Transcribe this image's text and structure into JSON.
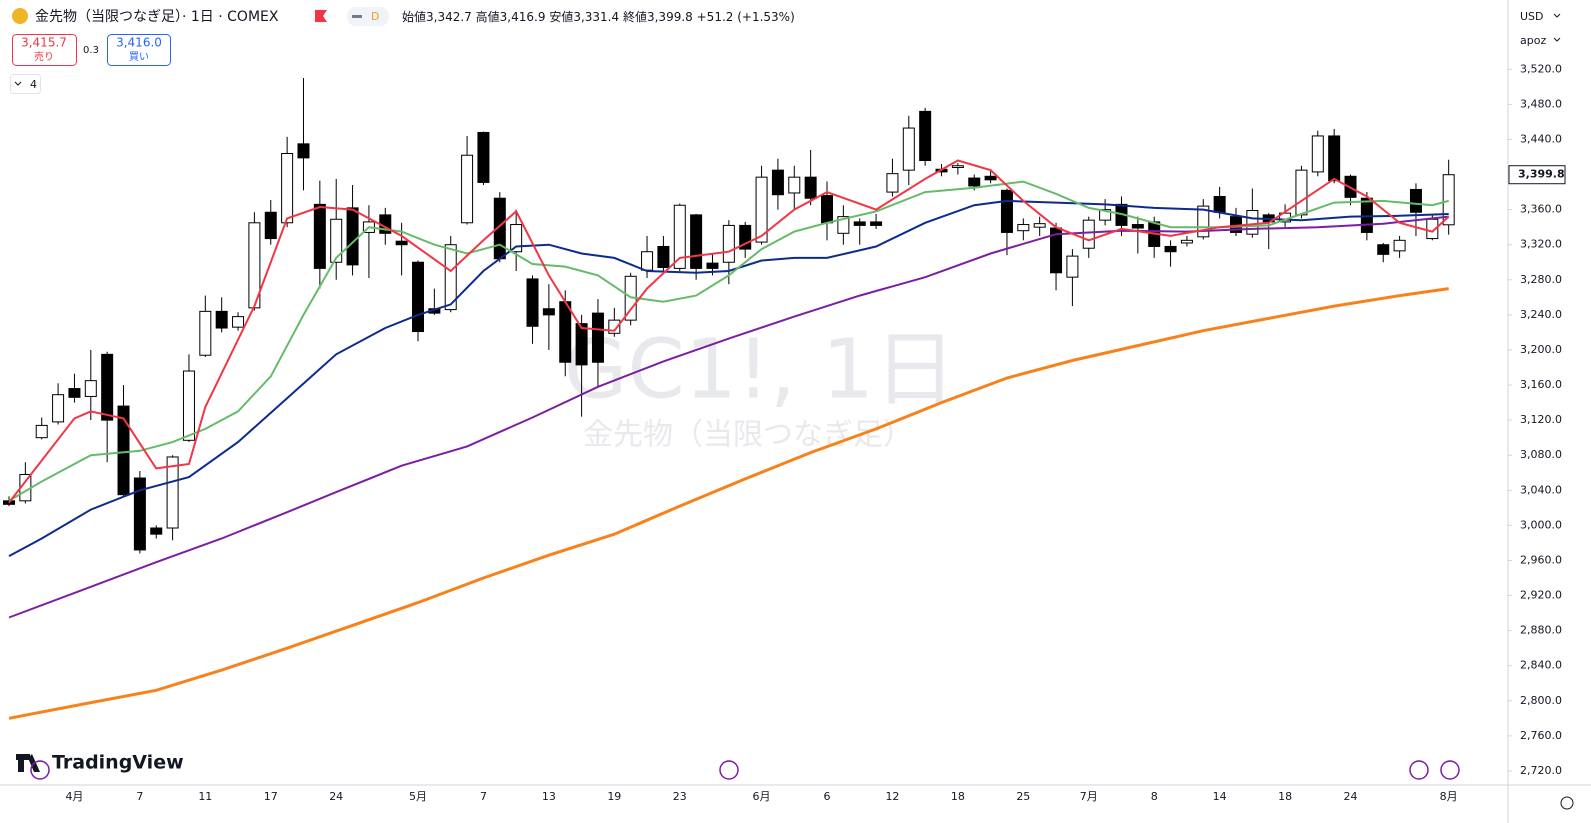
{
  "header": {
    "symbol_title": "金先物（当限つなぎ足）· 1日 · COMEX",
    "interval_badge": "D",
    "ohlc": [
      {
        "label": "始値",
        "value": "3,342.7"
      },
      {
        "label": "高値",
        "value": "3,416.9"
      },
      {
        "label": "安値",
        "value": "3,331.4"
      },
      {
        "label": "終値",
        "value": "3,399.8"
      }
    ],
    "change": "+51.2 (+1.53%)"
  },
  "trade": {
    "sell_price": "3,415.7",
    "sell_label": "売り",
    "spread": "0.3",
    "buy_price": "3,416.0",
    "buy_label": "買い"
  },
  "indicators_count": "4",
  "watermark": {
    "line1": "GC1!, 1日",
    "line2": "金先物（当限つなぎ足）"
  },
  "brand": "TradingView",
  "currency": "USD",
  "scale_mode": "apoz",
  "chart_data": {
    "type": "candlestick",
    "categories": [
      null,
      null,
      null,
      null,
      "4月",
      null,
      null,
      null,
      "7",
      null,
      null,
      null,
      "11",
      null,
      null,
      null,
      "17",
      null,
      null,
      null,
      "24",
      null,
      null,
      null,
      null,
      "5月",
      null,
      null,
      null,
      "7",
      null,
      null,
      null,
      "13",
      null,
      null,
      null,
      "19",
      null,
      null,
      null,
      "23",
      null,
      null,
      null,
      null,
      "6月",
      null,
      null,
      null,
      "6",
      null,
      null,
      null,
      "12",
      null,
      null,
      null,
      "18",
      null,
      null,
      null,
      "25",
      null,
      null,
      null,
      "7月",
      null,
      null,
      null,
      "8",
      null,
      null,
      null,
      "14",
      null,
      null,
      null,
      "18",
      null,
      null,
      null,
      "24",
      null,
      null,
      null,
      null,
      null,
      "8月"
    ],
    "open": [
      3028,
      3028,
      3100,
      3118,
      3156,
      3147,
      3195,
      3136,
      3054,
      2997,
      2997,
      3097,
      3194,
      3244,
      3226,
      3248,
      3357,
      3345,
      3435,
      3366,
      3300,
      3362,
      3334,
      3354,
      3324,
      3300,
      3247,
      3246,
      3345,
      3448,
      3373,
      3312,
      3281,
      3247,
      3255,
      3230,
      3242,
      3219,
      3234,
      3291,
      3318,
      3293,
      3354,
      3299,
      3300,
      3342,
      3323,
      3405,
      3379,
      3397,
      3376,
      3333,
      3346,
      3346,
      3380,
      3405,
      3472,
      3406,
      3408,
      3396,
      3398,
      3382,
      3336,
      3340,
      3339,
      3283,
      3316,
      3348,
      3366,
      3343,
      3346,
      3318,
      3322,
      3329,
      3375,
      3352,
      3332,
      3354,
      3346,
      3354,
      3403,
      3444,
      3398,
      3373,
      3320,
      3313,
      3383,
      3327,
      3342.7
    ],
    "high": [
      3033,
      3072,
      3123,
      3162,
      3173,
      3200,
      3198,
      3160,
      3062,
      3000,
      3080,
      3195,
      3262,
      3260,
      3243,
      3357,
      3371,
      3443,
      3510,
      3393,
      3395,
      3388,
      3365,
      3362,
      3345,
      3302,
      3270,
      3330,
      3444,
      3449,
      3380,
      3360,
      3285,
      3275,
      3268,
      3240,
      3258,
      3248,
      3288,
      3330,
      3330,
      3367,
      3355,
      3310,
      3348,
      3346,
      3410,
      3418,
      3410,
      3428,
      3392,
      3365,
      3350,
      3355,
      3418,
      3467,
      3476,
      3412,
      3413,
      3400,
      3405,
      3384,
      3350,
      3352,
      3345,
      3315,
      3352,
      3372,
      3375,
      3352,
      3352,
      3325,
      3330,
      3372,
      3386,
      3362,
      3384,
      3356,
      3366,
      3410,
      3450,
      3452,
      3400,
      3380,
      3322,
      3330,
      3390,
      3355,
      3416.9
    ],
    "low": [
      3022,
      3025,
      3098,
      3115,
      3140,
      3120,
      3072,
      3032,
      2968,
      2985,
      2983,
      3095,
      3192,
      3220,
      3222,
      3245,
      3320,
      3340,
      3382,
      3270,
      3280,
      3285,
      3282,
      3320,
      3285,
      3210,
      3240,
      3243,
      3343,
      3388,
      3300,
      3290,
      3207,
      3200,
      3170,
      3124,
      3157,
      3215,
      3228,
      3282,
      3290,
      3290,
      3280,
      3285,
      3275,
      3305,
      3320,
      3360,
      3360,
      3365,
      3325,
      3320,
      3320,
      3338,
      3375,
      3388,
      3410,
      3398,
      3400,
      3382,
      3390,
      3308,
      3325,
      3330,
      3268,
      3250,
      3305,
      3342,
      3330,
      3310,
      3305,
      3295,
      3318,
      3326,
      3350,
      3330,
      3328,
      3315,
      3340,
      3350,
      3398,
      3390,
      3365,
      3325,
      3300,
      3305,
      3330,
      3325,
      3331.4
    ],
    "close": [
      3024,
      3058,
      3114,
      3149,
      3146,
      3165,
      3120,
      3035,
      2972,
      2990,
      3078,
      3176,
      3244,
      3225,
      3238,
      3345,
      3327,
      3424,
      3419,
      3293,
      3349,
      3297,
      3346,
      3333,
      3320,
      3221,
      3242,
      3320,
      3422,
      3391,
      3304,
      3343,
      3227,
      3240,
      3186,
      3183,
      3186,
      3234,
      3284,
      3312,
      3294,
      3365,
      3293,
      3293,
      3342,
      3315,
      3397,
      3377,
      3397,
      3373,
      3345,
      3352,
      3342,
      3342,
      3401,
      3453,
      3416,
      3403,
      3410,
      3387,
      3394,
      3334,
      3343,
      3344,
      3288,
      3307,
      3348,
      3360,
      3342,
      3339,
      3318,
      3312,
      3325,
      3364,
      3357,
      3334,
      3359,
      3346,
      3356,
      3405,
      3444,
      3393,
      3374,
      3334,
      3309,
      3325,
      3357,
      3349,
      3399.8
    ],
    "last_price_label": "3,399.8",
    "series": [
      {
        "color": "#f7821b",
        "x": [
          0,
          5,
          9,
          13,
          17,
          21,
          25,
          29,
          33,
          37,
          41,
          45,
          49,
          53,
          57,
          61,
          65,
          69,
          73,
          77,
          81,
          85,
          88
        ],
        "values": [
          2780,
          2798,
          2812,
          2835,
          2860,
          2886,
          2912,
          2940,
          2966,
          2990,
          3022,
          3053,
          3083,
          3110,
          3140,
          3168,
          3188,
          3205,
          3222,
          3236,
          3250,
          3262,
          3270
        ]
      },
      {
        "color": "#7b1fa2",
        "x": [
          0,
          5,
          9,
          13,
          17,
          20,
          24,
          28,
          32,
          36,
          40,
          44,
          48,
          52,
          56,
          60,
          64,
          68,
          72,
          76,
          80,
          84,
          88
        ],
        "values": [
          2895,
          2930,
          2958,
          2985,
          3015,
          3038,
          3068,
          3090,
          3123,
          3158,
          3187,
          3213,
          3238,
          3262,
          3283,
          3310,
          3332,
          3336,
          3335,
          3338,
          3340,
          3344,
          3352
        ]
      },
      {
        "color": "#0d2b8c",
        "x": [
          0,
          2,
          5,
          8,
          11,
          14,
          17,
          20,
          23,
          25,
          27,
          29,
          31,
          33,
          35,
          37,
          39,
          42,
          44,
          46,
          48,
          50,
          53,
          56,
          59,
          61,
          64,
          67,
          70,
          73,
          76,
          79,
          82,
          85,
          88
        ],
        "values": [
          2965,
          2985,
          3018,
          3040,
          3055,
          3095,
          3145,
          3195,
          3225,
          3240,
          3252,
          3290,
          3318,
          3320,
          3310,
          3305,
          3290,
          3288,
          3290,
          3302,
          3305,
          3305,
          3318,
          3345,
          3365,
          3370,
          3368,
          3366,
          3362,
          3360,
          3350,
          3348,
          3352,
          3353,
          3355
        ]
      },
      {
        "color": "#66bb6a",
        "x": [
          0,
          2,
          5,
          8,
          10,
          12,
          14,
          16,
          18,
          20,
          22,
          24,
          26,
          28,
          30,
          32,
          34,
          36,
          38,
          40,
          42,
          44,
          46,
          48,
          50,
          53,
          56,
          59,
          62,
          64,
          66,
          68,
          71,
          74,
          77,
          79,
          81,
          84,
          87,
          88
        ],
        "values": [
          3028,
          3050,
          3080,
          3085,
          3095,
          3110,
          3130,
          3170,
          3240,
          3305,
          3340,
          3335,
          3320,
          3310,
          3320,
          3298,
          3295,
          3285,
          3260,
          3255,
          3262,
          3285,
          3315,
          3335,
          3345,
          3358,
          3380,
          3385,
          3392,
          3378,
          3362,
          3355,
          3340,
          3340,
          3342,
          3355,
          3368,
          3370,
          3365,
          3370
        ]
      },
      {
        "color": "#f23645",
        "x": [
          0,
          4,
          5,
          7,
          9,
          11,
          12,
          15,
          17,
          19,
          21,
          24,
          27,
          29,
          31,
          33,
          35,
          37,
          39,
          41,
          44,
          46,
          48,
          50,
          53,
          56,
          58,
          60,
          62,
          64,
          66,
          68,
          71,
          74,
          77,
          79,
          81,
          83,
          85,
          87,
          88
        ],
        "values": [
          3026,
          3122,
          3130,
          3122,
          3065,
          3070,
          3135,
          3250,
          3350,
          3363,
          3360,
          3330,
          3290,
          3325,
          3358,
          3285,
          3225,
          3222,
          3270,
          3305,
          3312,
          3330,
          3360,
          3380,
          3360,
          3395,
          3416,
          3405,
          3370,
          3340,
          3325,
          3338,
          3330,
          3340,
          3345,
          3370,
          3395,
          3375,
          3345,
          3335,
          3352
        ]
      }
    ],
    "ylim": [
      2704,
      3599
    ],
    "yticks": [
      {
        "value": 2720,
        "label": "2,720.0"
      },
      {
        "value": 2760,
        "label": "2,760.0"
      },
      {
        "value": 2800,
        "label": "2,800.0"
      },
      {
        "value": 2840,
        "label": "2,840.0"
      },
      {
        "value": 2880,
        "label": "2,880.0"
      },
      {
        "value": 2920,
        "label": "2,920.0"
      },
      {
        "value": 2960,
        "label": "2,960.0"
      },
      {
        "value": 3000,
        "label": "3,000.0"
      },
      {
        "value": 3040,
        "label": "3,040.0"
      },
      {
        "value": 3080,
        "label": "3,080.0"
      },
      {
        "value": 3120,
        "label": "3,120.0"
      },
      {
        "value": 3160,
        "label": "3,160.0"
      },
      {
        "value": 3200,
        "label": "3,200.0"
      },
      {
        "value": 3240,
        "label": "3,240.0"
      },
      {
        "value": 3280,
        "label": "3,280.0"
      },
      {
        "value": 3320,
        "label": "3,320.0"
      },
      {
        "value": 3360,
        "label": "3,360.0"
      },
      {
        "value": 3400,
        "label": "3,400.0"
      },
      {
        "value": 3440,
        "label": "3,440.0"
      },
      {
        "value": 3480,
        "label": "3,480.0"
      },
      {
        "value": 3520,
        "label": "3,520.0"
      }
    ],
    "grid": true
  }
}
